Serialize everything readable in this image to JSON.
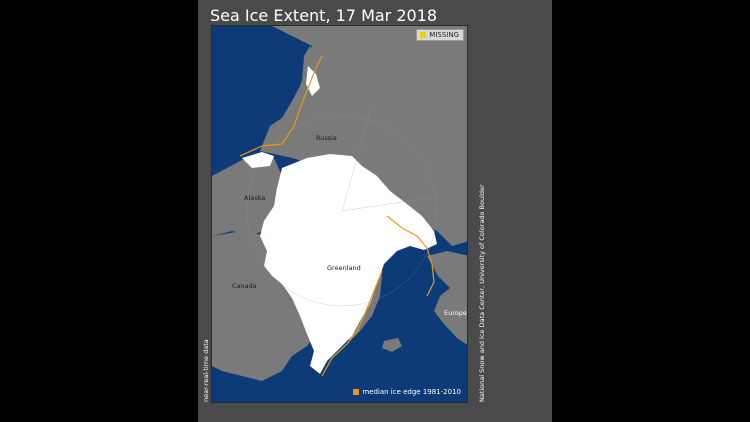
{
  "title": "Sea Ice Extent, 17 Mar 2018",
  "legend": {
    "missing_label": "MISSING",
    "missing_color": "#f0d000",
    "median_label": "median ice edge 1981-2010",
    "median_color": "#e89a1a"
  },
  "colors": {
    "ocean": "#0d3b78",
    "land": "#7a7a7a",
    "ice": "#ffffff",
    "panel": "#4a4a4a"
  },
  "map_labels": {
    "russia": "Russia",
    "alaska": "Alaska",
    "canada": "Canada",
    "greenland": "Greenland",
    "europe": "Europe"
  },
  "side_text": {
    "left": "near-real-time data",
    "right": "National Snow and Ice Data Center, University of Colorado Boulder"
  }
}
